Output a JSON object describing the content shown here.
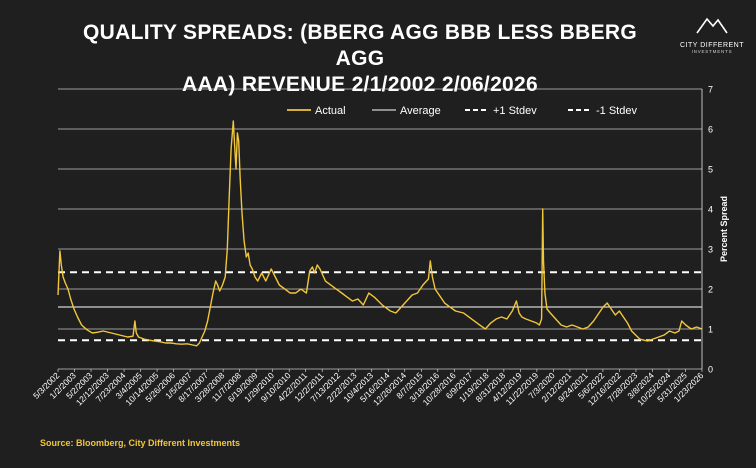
{
  "header": {
    "title_line1": "QUALITY SPREADS: (BBERG AGG BBB LESS BBERG AGG",
    "title_line2": "AAA) REVENUE 2/1/2002 2/06/2026"
  },
  "logo": {
    "name": "CITY DIFFERENT",
    "sub": "INVESTMENTS"
  },
  "footer": {
    "source": "Source: Bloomberg, City Different Investments"
  },
  "colors": {
    "background": "#1f1f1f",
    "actual": "#f0c63a",
    "grid": "#e6e6e6",
    "text": "#ffffff"
  },
  "chart_data": {
    "type": "line",
    "title": "QUALITY SPREADS: (BBERG AGG BBB LESS BBERG AGG AAA) REVENUE 2/1/2002 2/06/2026",
    "xlabel": "",
    "ylabel": "Percent Spread",
    "ylim": [
      0,
      7
    ],
    "yticks": [
      0,
      1,
      2,
      3,
      4,
      5,
      6,
      7
    ],
    "xlim": [
      2002.33,
      2026.1
    ],
    "grid": true,
    "legend_position": "top",
    "x_tick_labels": [
      "5/3/2002",
      "1/2/2003",
      "5/2/2003",
      "12/12/2003",
      "7/23/2004",
      "3/4/2005",
      "10/14/2005",
      "5/26/2006",
      "1/5/2007",
      "8/17/2007",
      "3/28/2008",
      "11/7/2008",
      "6/19/2009",
      "1/29/2010",
      "9/10/2010",
      "4/22/2011",
      "12/2/2011",
      "7/13/2012",
      "2/22/2013",
      "10/4/2013",
      "5/16/2014",
      "12/26/2014",
      "8/7/2015",
      "3/18/2016",
      "10/28/2016",
      "6/9/2017",
      "1/19/2018",
      "8/31/2018",
      "4/12/2019",
      "11/22/2019",
      "7/3/2020",
      "2/12/2021",
      "9/24/2021",
      "5/6/2022",
      "12/16/2022",
      "7/28/2023",
      "3/8/2024",
      "10/25/2024",
      "5/31/2025",
      "1/23/2026"
    ],
    "series": [
      {
        "name": "Actual",
        "style": "solid-gold",
        "x": [
          2002.33,
          2002.4,
          2002.45,
          2002.52,
          2002.6,
          2002.7,
          2002.8,
          2002.92,
          2003.05,
          2003.2,
          2003.4,
          2003.6,
          2003.8,
          2004.0,
          2004.3,
          2004.6,
          2004.9,
          2005.1,
          2005.17,
          2005.22,
          2005.3,
          2005.5,
          2005.7,
          2005.9,
          2006.1,
          2006.3,
          2006.5,
          2006.7,
          2006.9,
          2007.1,
          2007.3,
          2007.45,
          2007.55,
          2007.65,
          2007.75,
          2007.85,
          2007.95,
          2008.05,
          2008.15,
          2008.22,
          2008.3,
          2008.4,
          2008.5,
          2008.58,
          2008.65,
          2008.72,
          2008.8,
          2008.85,
          2008.9,
          2008.95,
          2009.0,
          2009.05,
          2009.12,
          2009.2,
          2009.28,
          2009.35,
          2009.42,
          2009.5,
          2009.6,
          2009.7,
          2009.85,
          2010.0,
          2010.2,
          2010.35,
          2010.5,
          2010.7,
          2010.9,
          2011.1,
          2011.3,
          2011.5,
          2011.62,
          2011.72,
          2011.8,
          2011.9,
          2012.0,
          2012.2,
          2012.4,
          2012.6,
          2012.8,
          2013.0,
          2013.2,
          2013.4,
          2013.6,
          2013.8,
          2014.0,
          2014.3,
          2014.6,
          2014.8,
          2015.0,
          2015.2,
          2015.4,
          2015.6,
          2015.8,
          2016.0,
          2016.07,
          2016.15,
          2016.25,
          2016.4,
          2016.6,
          2016.8,
          2017.0,
          2017.3,
          2017.6,
          2017.9,
          2018.1,
          2018.3,
          2018.5,
          2018.7,
          2018.9,
          2019.1,
          2019.25,
          2019.35,
          2019.45,
          2019.6,
          2019.8,
          2020.0,
          2020.1,
          2020.18,
          2020.22,
          2020.25,
          2020.3,
          2020.38,
          2020.5,
          2020.7,
          2020.9,
          2021.1,
          2021.3,
          2021.5,
          2021.7,
          2021.9,
          2022.1,
          2022.3,
          2022.45,
          2022.6,
          2022.75,
          2022.9,
          2023.05,
          2023.2,
          2023.35,
          2023.5,
          2023.65,
          2023.8,
          2023.95,
          2024.1,
          2024.3,
          2024.5,
          2024.7,
          2024.9,
          2025.1,
          2025.25,
          2025.35,
          2025.5,
          2025.7,
          2025.9,
          2026.1
        ],
        "y": [
          1.85,
          2.95,
          2.6,
          2.3,
          2.15,
          2.0,
          1.75,
          1.5,
          1.3,
          1.1,
          0.98,
          0.9,
          0.92,
          0.95,
          0.9,
          0.85,
          0.8,
          0.82,
          1.2,
          0.9,
          0.8,
          0.75,
          0.72,
          0.7,
          0.68,
          0.65,
          0.65,
          0.63,
          0.62,
          0.63,
          0.6,
          0.58,
          0.65,
          0.8,
          0.95,
          1.2,
          1.55,
          1.9,
          2.2,
          2.1,
          1.95,
          2.1,
          2.3,
          3.0,
          4.3,
          5.5,
          6.2,
          5.6,
          5.0,
          5.9,
          5.7,
          4.8,
          3.9,
          3.2,
          2.8,
          2.9,
          2.6,
          2.5,
          2.3,
          2.2,
          2.4,
          2.2,
          2.5,
          2.3,
          2.1,
          2.0,
          1.9,
          1.9,
          2.0,
          1.9,
          2.45,
          2.55,
          2.4,
          2.6,
          2.5,
          2.2,
          2.1,
          2.0,
          1.9,
          1.8,
          1.7,
          1.75,
          1.6,
          1.9,
          1.8,
          1.6,
          1.45,
          1.4,
          1.55,
          1.7,
          1.85,
          1.9,
          2.1,
          2.25,
          2.7,
          2.3,
          2.0,
          1.85,
          1.65,
          1.55,
          1.45,
          1.4,
          1.25,
          1.1,
          1.0,
          1.15,
          1.25,
          1.3,
          1.25,
          1.45,
          1.7,
          1.4,
          1.3,
          1.25,
          1.2,
          1.15,
          1.1,
          1.25,
          4.0,
          2.7,
          1.9,
          1.5,
          1.4,
          1.25,
          1.1,
          1.05,
          1.1,
          1.05,
          1.0,
          1.05,
          1.2,
          1.4,
          1.55,
          1.65,
          1.5,
          1.35,
          1.45,
          1.3,
          1.15,
          0.95,
          0.85,
          0.75,
          0.72,
          0.7,
          0.75,
          0.8,
          0.85,
          0.95,
          0.9,
          0.95,
          1.2,
          1.1,
          1.0,
          1.05,
          1.0
        ]
      },
      {
        "name": "Average",
        "style": "solid-white",
        "value": 1.55
      },
      {
        "name": "+1 Stdev",
        "style": "dashed-white",
        "value": 2.42
      },
      {
        "name": "-1 Stdev",
        "style": "dashed-white",
        "value": 0.72
      }
    ]
  }
}
